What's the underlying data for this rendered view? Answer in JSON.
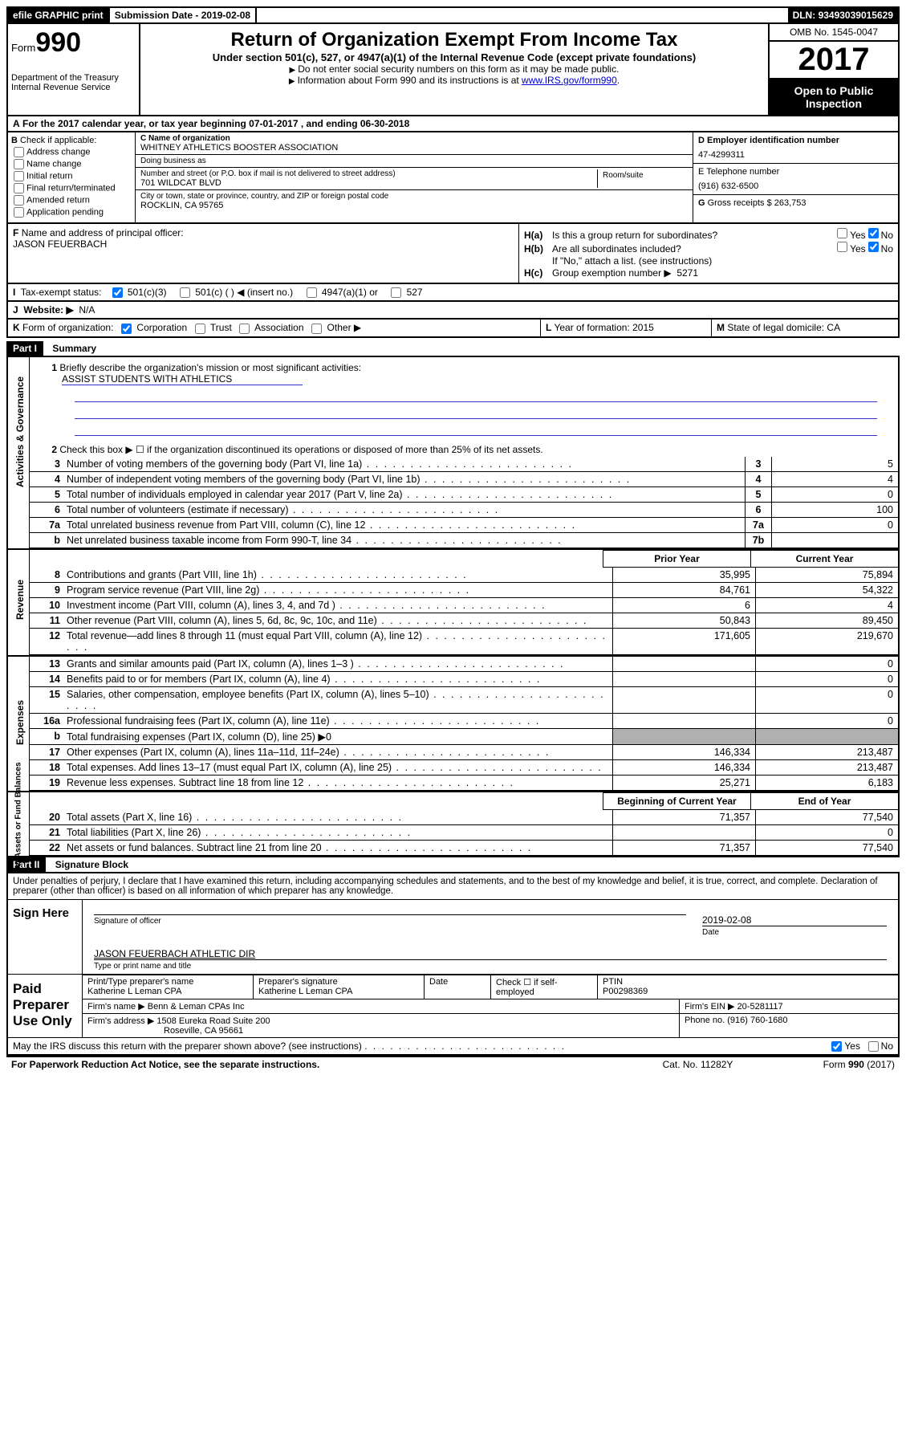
{
  "topbar": {
    "efile": "efile GRAPHIC print",
    "submission_label": "Submission Date - ",
    "submission_date": "2019-02-08",
    "dln_label": "DLN: ",
    "dln": "93493039015629"
  },
  "header": {
    "form_label": "Form",
    "form_number": "990",
    "dept1": "Department of the Treasury",
    "dept2": "Internal Revenue Service",
    "title": "Return of Organization Exempt From Income Tax",
    "subtitle": "Under section 501(c), 527, or 4947(a)(1) of the Internal Revenue Code (except private foundations)",
    "note1": "Do not enter social security numbers on this form as it may be made public.",
    "note2_pre": "Information about Form 990 and its instructions is at ",
    "note2_link": "www.IRS.gov/form990",
    "omb": "OMB No. 1545-0047",
    "year": "2017",
    "inspection": "Open to Public Inspection"
  },
  "section_a": {
    "a_label": "A",
    "text_pre": "For the 2017 calendar year, or tax year beginning ",
    "begin": "07-01-2017",
    "text_mid": " , and ending ",
    "end": "06-30-2018"
  },
  "block_b": {
    "b_label": "B",
    "check_label": "Check if applicable:",
    "options": {
      "addr": "Address change",
      "name": "Name change",
      "initial": "Initial return",
      "final": "Final return/terminated",
      "amended": "Amended return",
      "pending": "Application pending"
    }
  },
  "block_c": {
    "c_name_label": "C Name of organization",
    "org_name": "WHITNEY ATHLETICS BOOSTER ASSOCIATION",
    "dba_label": "Doing business as",
    "dba": "",
    "street_label": "Number and street (or P.O. box if mail is not delivered to street address)",
    "room_label": "Room/suite",
    "street": "701 WILDCAT BLVD",
    "city_label": "City or town, state or province, country, and ZIP or foreign postal code",
    "city": "ROCKLIN, CA  95765"
  },
  "block_d": {
    "d_label": "D Employer identification number",
    "ein": "47-4299311",
    "e_label": "E Telephone number",
    "phone": "(916) 632-6500",
    "g_label": "G",
    "g_text": "Gross receipts $ ",
    "g_val": "263,753"
  },
  "block_f": {
    "f_label": "F",
    "f_text": "Name and address of principal officer:",
    "officer": "JASON FEUERBACH"
  },
  "block_h": {
    "ha_label": "H(a)",
    "ha_text": "Is this a group return for subordinates?",
    "hb_label": "H(b)",
    "hb_text": "Are all subordinates included?",
    "h_note": "If \"No,\" attach a list. (see instructions)",
    "hc_label": "H(c)",
    "hc_text": "Group exemption number ▶",
    "hc_val": "5271",
    "yes": "Yes",
    "no": "No"
  },
  "tax_status": {
    "i_label": "I",
    "text": "Tax-exempt status:",
    "opt1": "501(c)(3)",
    "opt2": "501(c) (  ) ◀ (insert no.)",
    "opt3": "4947(a)(1) or",
    "opt4": "527"
  },
  "website": {
    "j_label": "J",
    "text": "Website: ▶",
    "val": "N/A"
  },
  "form_org": {
    "k_label": "K",
    "text": "Form of organization:",
    "corp": "Corporation",
    "trust": "Trust",
    "assoc": "Association",
    "other": "Other ▶",
    "l_label": "L",
    "l_text": "Year of formation: ",
    "l_val": "2015",
    "m_label": "M",
    "m_text": "State of legal domicile: ",
    "m_val": "CA"
  },
  "part1": {
    "header": "Part I",
    "title": "Summary",
    "side1": "Activities & Governance",
    "side2": "Revenue",
    "side3": "Expenses",
    "side4": "Net Assets or Fund Balances",
    "line1": {
      "num": "1",
      "desc": "Briefly describe the organization's mission or most significant activities:",
      "val": "ASSIST STUDENTS WITH ATHLETICS"
    },
    "line2": {
      "num": "2",
      "desc": "Check this box ▶ ☐ if the organization discontinued its operations or disposed of more than 25% of its net assets."
    },
    "lines_gov": [
      {
        "num": "3",
        "desc": "Number of voting members of the governing body (Part VI, line 1a)",
        "box": "3",
        "val": "5"
      },
      {
        "num": "4",
        "desc": "Number of independent voting members of the governing body (Part VI, line 1b)",
        "box": "4",
        "val": "4"
      },
      {
        "num": "5",
        "desc": "Total number of individuals employed in calendar year 2017 (Part V, line 2a)",
        "box": "5",
        "val": "0"
      },
      {
        "num": "6",
        "desc": "Total number of volunteers (estimate if necessary)",
        "box": "6",
        "val": "100"
      },
      {
        "num": "7a",
        "desc": "Total unrelated business revenue from Part VIII, column (C), line 12",
        "box": "7a",
        "val": "0"
      },
      {
        "num": "b",
        "desc": "Net unrelated business taxable income from Form 990-T, line 34",
        "box": "7b",
        "val": ""
      }
    ],
    "col_head1": "Prior Year",
    "col_head2": "Current Year",
    "lines_rev": [
      {
        "num": "8",
        "desc": "Contributions and grants (Part VIII, line 1h)",
        "c1": "35,995",
        "c2": "75,894"
      },
      {
        "num": "9",
        "desc": "Program service revenue (Part VIII, line 2g)",
        "c1": "84,761",
        "c2": "54,322"
      },
      {
        "num": "10",
        "desc": "Investment income (Part VIII, column (A), lines 3, 4, and 7d )",
        "c1": "6",
        "c2": "4"
      },
      {
        "num": "11",
        "desc": "Other revenue (Part VIII, column (A), lines 5, 6d, 8c, 9c, 10c, and 11e)",
        "c1": "50,843",
        "c2": "89,450"
      },
      {
        "num": "12",
        "desc": "Total revenue—add lines 8 through 11 (must equal Part VIII, column (A), line 12)",
        "c1": "171,605",
        "c2": "219,670"
      }
    ],
    "lines_exp": [
      {
        "num": "13",
        "desc": "Grants and similar amounts paid (Part IX, column (A), lines 1–3 )",
        "c1": "",
        "c2": "0"
      },
      {
        "num": "14",
        "desc": "Benefits paid to or for members (Part IX, column (A), line 4)",
        "c1": "",
        "c2": "0"
      },
      {
        "num": "15",
        "desc": "Salaries, other compensation, employee benefits (Part IX, column (A), lines 5–10)",
        "c1": "",
        "c2": "0"
      },
      {
        "num": "16a",
        "desc": "Professional fundraising fees (Part IX, column (A), line 11e)",
        "c1": "",
        "c2": "0"
      },
      {
        "num": "b",
        "desc": "Total fundraising expenses (Part IX, column (D), line 25) ▶0",
        "shaded": true
      },
      {
        "num": "17",
        "desc": "Other expenses (Part IX, column (A), lines 11a–11d, 11f–24e)",
        "c1": "146,334",
        "c2": "213,487"
      },
      {
        "num": "18",
        "desc": "Total expenses. Add lines 13–17 (must equal Part IX, column (A), line 25)",
        "c1": "146,334",
        "c2": "213,487"
      },
      {
        "num": "19",
        "desc": "Revenue less expenses. Subtract line 18 from line 12",
        "c1": "25,271",
        "c2": "6,183"
      }
    ],
    "col_head3": "Beginning of Current Year",
    "col_head4": "End of Year",
    "lines_net": [
      {
        "num": "20",
        "desc": "Total assets (Part X, line 16)",
        "c1": "71,357",
        "c2": "77,540"
      },
      {
        "num": "21",
        "desc": "Total liabilities (Part X, line 26)",
        "c1": "",
        "c2": "0"
      },
      {
        "num": "22",
        "desc": "Net assets or fund balances. Subtract line 21 from line 20",
        "c1": "71,357",
        "c2": "77,540"
      }
    ]
  },
  "part2": {
    "header": "Part II",
    "title": "Signature Block",
    "declaration": "Under penalties of perjury, I declare that I have examined this return, including accompanying schedules and statements, and to the best of my knowledge and belief, it is true, correct, and complete. Declaration of preparer (other than officer) is based on all information of which preparer has any knowledge.",
    "sign_here": "Sign Here",
    "sig_officer_label": "Signature of officer",
    "sig_date": "2019-02-08",
    "date_label": "Date",
    "officer_name": "JASON FEUERBACH ATHLETIC DIR",
    "name_label": "Type or print name and title",
    "paid_prep": "Paid Preparer Use Only",
    "prep_name_label": "Print/Type preparer's name",
    "prep_name": "Katherine L Leman CPA",
    "prep_sig_label": "Preparer's signature",
    "prep_sig": "Katherine L Leman CPA",
    "prep_date_label": "Date",
    "check_self": "Check ☐ if self-employed",
    "ptin_label": "PTIN",
    "ptin": "P00298369",
    "firm_name_label": "Firm's name    ▶ ",
    "firm_name": "Benn & Leman CPAs Inc",
    "firm_ein_label": "Firm's EIN ▶ ",
    "firm_ein": "20-5281117",
    "firm_addr_label": "Firm's address ▶ ",
    "firm_addr1": "1508 Eureka Road Suite 200",
    "firm_addr2": "Roseville, CA  95661",
    "firm_phone_label": "Phone no. ",
    "firm_phone": "(916) 760-1680",
    "discuss": "May the IRS discuss this return with the preparer shown above? (see instructions)",
    "yes": "Yes",
    "no": "No"
  },
  "footer": {
    "pra": "For Paperwork Reduction Act Notice, see the separate instructions.",
    "cat": "Cat. No. 11282Y",
    "form": "Form 990 (2017)"
  }
}
